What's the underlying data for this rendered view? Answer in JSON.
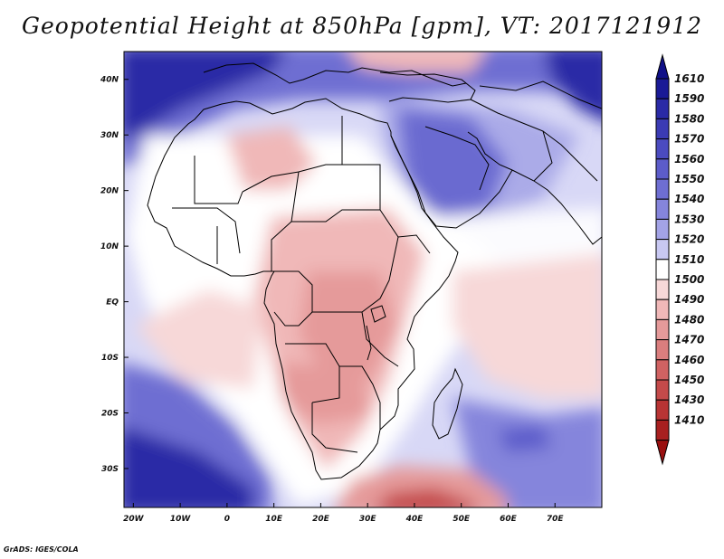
{
  "title": "Geopotential Height at 850hPa [gpm], VT: 2017121912",
  "credit": "GrADS: IGES/COLA",
  "map": {
    "variable": "Geopotential Height",
    "level": "850hPa",
    "units": "gpm",
    "valid_time": "2017121912",
    "lon_range": [
      -22,
      80
    ],
    "lat_range": [
      -37,
      45
    ],
    "lon_ticks": [
      {
        "value": -20,
        "label": "20W"
      },
      {
        "value": -10,
        "label": "10W"
      },
      {
        "value": 0,
        "label": "0"
      },
      {
        "value": 10,
        "label": "10E"
      },
      {
        "value": 20,
        "label": "20E"
      },
      {
        "value": 30,
        "label": "30E"
      },
      {
        "value": 40,
        "label": "40E"
      },
      {
        "value": 50,
        "label": "50E"
      },
      {
        "value": 60,
        "label": "60E"
      },
      {
        "value": 70,
        "label": "70E"
      }
    ],
    "lat_ticks": [
      {
        "value": 40,
        "label": "40N"
      },
      {
        "value": 30,
        "label": "30N"
      },
      {
        "value": 20,
        "label": "20N"
      },
      {
        "value": 10,
        "label": "10N"
      },
      {
        "value": 0,
        "label": "EQ"
      },
      {
        "value": -10,
        "label": "10S"
      },
      {
        "value": -20,
        "label": "20S"
      },
      {
        "value": -30,
        "label": "30S"
      }
    ]
  },
  "colorbar": {
    "labels": [
      "1610",
      "1590",
      "1580",
      "1570",
      "1560",
      "1550",
      "1540",
      "1530",
      "1520",
      "1510",
      "1500",
      "1490",
      "1480",
      "1470",
      "1460",
      "1450",
      "1430",
      "1410"
    ],
    "colors": [
      "#1a1a96",
      "#2a2aa6",
      "#3b3bb4",
      "#4b4bc0",
      "#5c5cca",
      "#6e6ed2",
      "#8585dc",
      "#a3a3e6",
      "#c8c8f2",
      "#ffffff",
      "#f7d8d8",
      "#f0b8b8",
      "#e59a9a",
      "#da7e7e",
      "#d06262",
      "#c44a4a",
      "#b83434",
      "#a82020"
    ],
    "top_color": "#101088",
    "bottom_color": "#9a1010"
  }
}
